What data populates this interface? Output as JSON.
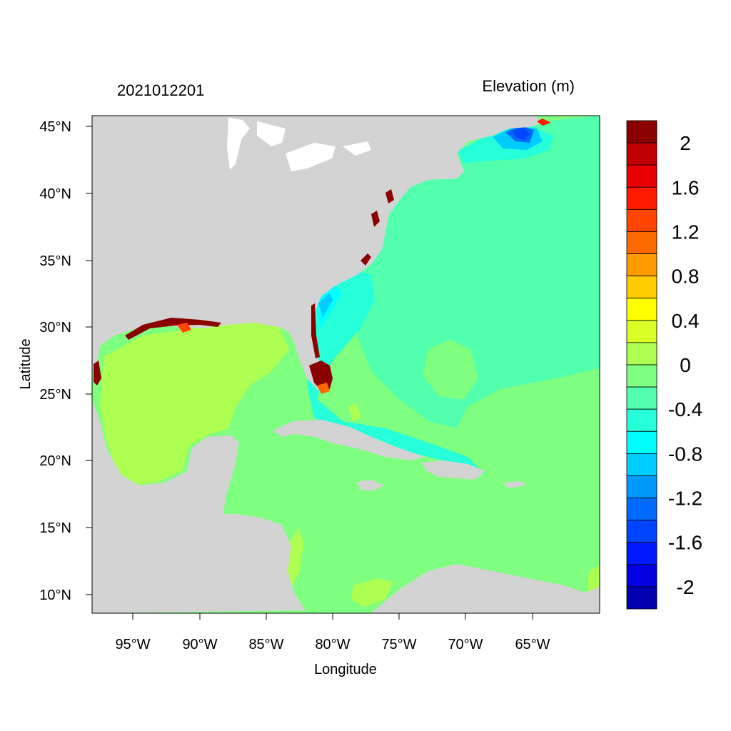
{
  "header": {
    "timestamp": "2021012201",
    "field_title": "Elevation (m)"
  },
  "axes": {
    "xlabel": "Longitude",
    "ylabel": "Latitude",
    "lon_ticks": [
      "95°W",
      "90°W",
      "85°W",
      "80°W",
      "75°W",
      "70°W",
      "65°W"
    ],
    "lat_ticks": [
      "45°N",
      "40°N",
      "35°N",
      "30°N",
      "25°N",
      "20°N",
      "15°N",
      "10°N"
    ]
  },
  "colorbar": {
    "labels": [
      "2",
      "1.6",
      "1.2",
      "0.8",
      "0.4",
      "0",
      "-0.4",
      "-0.8",
      "-1.2",
      "-1.6",
      "-2"
    ],
    "colors": [
      "#8b0000",
      "#c00000",
      "#e80000",
      "#ff1a00",
      "#ff4500",
      "#ff6a00",
      "#ff9a00",
      "#ffcc00",
      "#ffff00",
      "#d9ff26",
      "#adff52",
      "#7fff7f",
      "#52ffad",
      "#26ffd9",
      "#00ffff",
      "#00ccff",
      "#009aff",
      "#006aff",
      "#0045ff",
      "#001aff",
      "#0000e0",
      "#0000b0"
    ]
  },
  "colors": {
    "land": "#d3d3d3",
    "ocean_neutral": "#7fff7f",
    "ocean_minus02": "#52ffad",
    "ocean_minus05": "#26ffd9",
    "gulf_plus02": "#adff52",
    "surge_high": "#8b0000",
    "surge_low": "#0045ff"
  }
}
